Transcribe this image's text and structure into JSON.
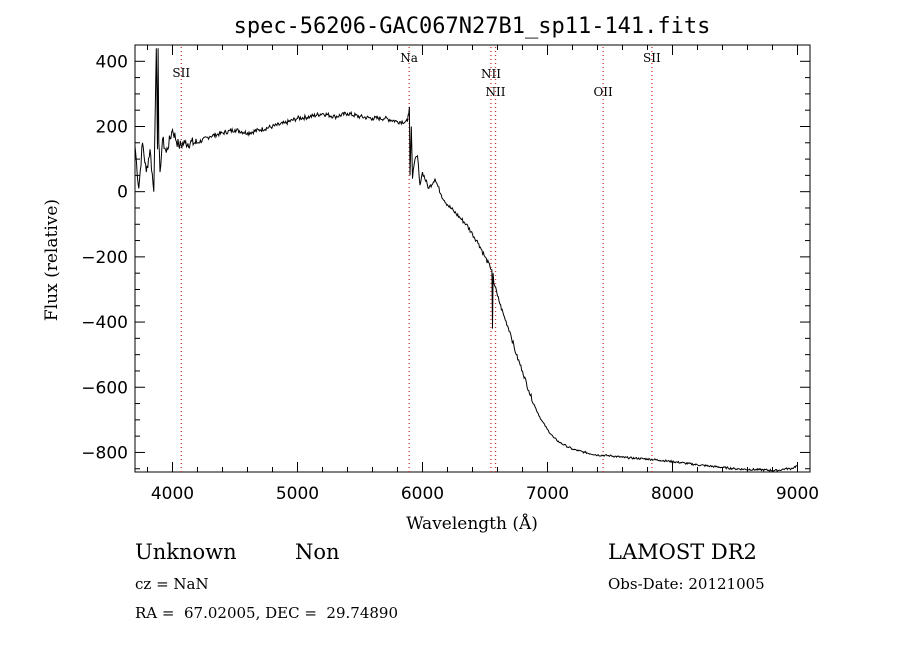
{
  "chart_data": {
    "type": "line",
    "title": "spec-56206-GAC067N27B1_sp11-141.fits",
    "xlabel": "Wavelength (Å)",
    "ylabel": "Flux (relative)",
    "xlim": [
      3700,
      9100
    ],
    "ylim": [
      -860,
      450
    ],
    "xticks": [
      4000,
      5000,
      6000,
      7000,
      8000,
      9000
    ],
    "xtick_labels": [
      "4000",
      "5000",
      "6000",
      "7000",
      "8000",
      "9000"
    ],
    "yticks": [
      400,
      200,
      0,
      -200,
      -400,
      -600,
      -800
    ],
    "ytick_labels": [
      "400",
      "200",
      "0",
      "−200",
      "−400",
      "−600",
      "−800"
    ],
    "grid": false,
    "line_color": "#000000",
    "marker_color": "#cc3333",
    "series": [
      {
        "x": [
          3700,
          3730,
          3760,
          3790,
          3820,
          3850,
          3870,
          3880,
          3885,
          3890,
          3900,
          3920,
          3950,
          4000,
          4050,
          4100,
          4200,
          4300,
          4400,
          4500,
          4600,
          4700,
          4800,
          4900,
          5000,
          5100,
          5200,
          5300,
          5400,
          5500,
          5600,
          5700,
          5800,
          5880,
          5895,
          5900,
          5910,
          5920,
          5940,
          5960,
          5980,
          6000,
          6050,
          6100,
          6150,
          6200,
          6250,
          6300,
          6350,
          6400,
          6450,
          6500,
          6540,
          6555,
          6560,
          6565,
          6570,
          6580,
          6600,
          6650,
          6700,
          6750,
          6800,
          6850,
          6900,
          6950,
          7000,
          7050,
          7100,
          7150,
          7200,
          7250,
          7300,
          7400,
          7500,
          7600,
          7700,
          7800,
          7900,
          8000,
          8100,
          8200,
          8300,
          8400,
          8500,
          8600,
          8700,
          8800,
          8850,
          8900,
          8950,
          9000
        ],
        "y": [
          140,
          10,
          150,
          60,
          130,
          0,
          440,
          130,
          440,
          150,
          60,
          160,
          120,
          190,
          140,
          150,
          150,
          170,
          180,
          190,
          180,
          190,
          200,
          210,
          225,
          230,
          240,
          230,
          240,
          230,
          225,
          225,
          215,
          215,
          260,
          50,
          200,
          40,
          100,
          110,
          20,
          60,
          10,
          40,
          -10,
          -40,
          -60,
          -80,
          -100,
          -130,
          -160,
          -200,
          -230,
          -240,
          -420,
          -250,
          -280,
          -290,
          -320,
          -380,
          -430,
          -500,
          -550,
          -610,
          -660,
          -700,
          -730,
          -755,
          -770,
          -780,
          -790,
          -795,
          -800,
          -808,
          -810,
          -815,
          -818,
          -820,
          -824,
          -828,
          -833,
          -838,
          -842,
          -846,
          -850,
          -852,
          -853,
          -855,
          -855,
          -850,
          -850,
          -840
        ]
      }
    ],
    "emission_lines": [
      {
        "label": "SII",
        "x": 4070
      },
      {
        "label": "Na",
        "x": 5893
      },
      {
        "label": "NII",
        "x": 6548
      },
      {
        "label": "NII",
        "x": 6584
      },
      {
        "label": "OII",
        "x": 7445
      },
      {
        "label": "SII",
        "x": 7835
      }
    ]
  },
  "info": {
    "class_label": "Unknown",
    "subclass_label": "Non",
    "survey": "LAMOST DR2",
    "cz": "cz = NaN",
    "obs_date": "Obs-Date: 20121005",
    "coords": "RA =  67.02005, DEC =  29.74890"
  }
}
